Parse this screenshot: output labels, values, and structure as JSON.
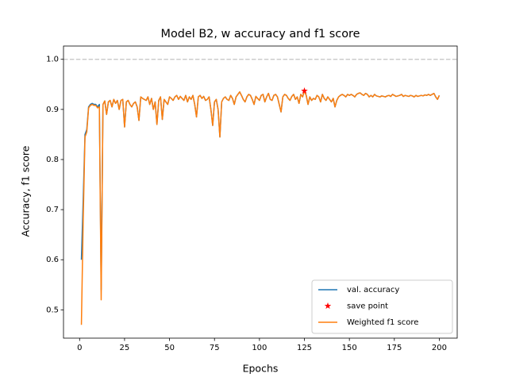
{
  "chart_data": {
    "type": "line",
    "title": "Model B2, w accuracy and f1 score",
    "xlabel": "Epochs",
    "ylabel": "Accuracy, f1 score",
    "x": [
      1,
      2,
      3,
      4,
      5,
      6,
      7,
      8,
      9,
      10,
      11,
      12,
      13,
      14,
      15,
      16,
      17,
      18,
      19,
      20,
      21,
      22,
      23,
      24,
      25,
      26,
      27,
      28,
      29,
      30,
      31,
      32,
      33,
      34,
      35,
      36,
      37,
      38,
      39,
      40,
      41,
      42,
      43,
      44,
      45,
      46,
      47,
      48,
      49,
      50,
      51,
      52,
      53,
      54,
      55,
      56,
      57,
      58,
      59,
      60,
      61,
      62,
      63,
      64,
      65,
      66,
      67,
      68,
      69,
      70,
      71,
      72,
      73,
      74,
      75,
      76,
      77,
      78,
      79,
      80,
      81,
      82,
      83,
      84,
      85,
      86,
      87,
      88,
      89,
      90,
      91,
      92,
      93,
      94,
      95,
      96,
      97,
      98,
      99,
      100,
      101,
      102,
      103,
      104,
      105,
      106,
      107,
      108,
      109,
      110,
      111,
      112,
      113,
      114,
      115,
      116,
      117,
      118,
      119,
      120,
      121,
      122,
      123,
      124,
      125,
      126,
      127,
      128,
      129,
      130,
      131,
      132,
      133,
      134,
      135,
      136,
      137,
      138,
      139,
      140,
      141,
      142,
      143,
      144,
      145,
      146,
      147,
      148,
      149,
      150,
      151,
      152,
      153,
      154,
      155,
      156,
      157,
      158,
      159,
      160,
      161,
      162,
      163,
      164,
      165,
      166,
      167,
      168,
      169,
      170,
      171,
      172,
      173,
      174,
      175,
      176,
      177,
      178,
      179,
      180,
      181,
      182,
      183,
      184,
      185,
      186,
      187,
      188,
      189,
      190,
      191,
      192,
      193,
      194,
      195,
      196,
      197,
      198,
      199,
      200
    ],
    "series": [
      {
        "name": "val. accuracy",
        "type": "line",
        "color": "#1f77b4",
        "values": [
          0.6,
          0.72,
          0.85,
          0.86,
          0.905,
          0.91,
          0.912,
          0.91,
          0.91,
          0.905,
          0.91,
          0.54,
          0.91,
          0.917,
          0.89,
          0.915,
          0.918,
          0.905,
          0.92,
          0.912,
          0.918,
          0.9,
          0.918,
          0.92,
          0.865,
          0.915,
          0.918,
          0.91,
          0.905,
          0.912,
          0.915,
          0.905,
          0.878,
          0.925,
          0.922,
          0.92,
          0.918,
          0.925,
          0.91,
          0.922,
          0.9,
          0.915,
          0.87,
          0.918,
          0.925,
          0.88,
          0.92,
          0.915,
          0.91,
          0.925,
          0.922,
          0.918,
          0.925,
          0.928,
          0.92,
          0.926,
          0.922,
          0.918,
          0.928,
          0.915,
          0.925,
          0.92,
          0.928,
          0.91,
          0.885,
          0.925,
          0.928,
          0.922,
          0.926,
          0.918,
          0.92,
          0.925,
          0.9,
          0.868,
          0.915,
          0.92,
          0.9,
          0.845,
          0.915,
          0.922,
          0.925,
          0.92,
          0.918,
          0.928,
          0.922,
          0.91,
          0.925,
          0.93,
          0.935,
          0.928,
          0.92,
          0.915,
          0.925,
          0.93,
          0.928,
          0.92,
          0.91,
          0.926,
          0.922,
          0.918,
          0.928,
          0.93,
          0.915,
          0.925,
          0.932,
          0.92,
          0.918,
          0.928,
          0.93,
          0.925,
          0.91,
          0.895,
          0.925,
          0.93,
          0.928,
          0.922,
          0.918,
          0.926,
          0.93,
          0.92,
          0.925,
          0.912,
          0.93,
          0.925,
          0.937,
          0.928,
          0.91,
          0.925,
          0.918,
          0.922,
          0.92,
          0.928,
          0.925,
          0.915,
          0.93,
          0.922,
          0.918,
          0.925,
          0.92,
          0.915,
          0.922,
          0.905,
          0.918,
          0.925,
          0.928,
          0.93,
          0.928,
          0.925,
          0.93,
          0.928,
          0.93,
          0.928,
          0.925,
          0.93,
          0.932,
          0.933,
          0.93,
          0.928,
          0.932,
          0.93,
          0.925,
          0.928,
          0.925,
          0.93,
          0.927,
          0.926,
          0.925,
          0.927,
          0.926,
          0.925,
          0.927,
          0.928,
          0.926,
          0.93,
          0.928,
          0.926,
          0.927,
          0.928,
          0.93,
          0.926,
          0.928,
          0.927,
          0.926,
          0.928,
          0.927,
          0.925,
          0.928,
          0.926,
          0.927,
          0.928,
          0.927,
          0.929,
          0.928,
          0.93,
          0.928,
          0.93,
          0.932,
          0.925,
          0.92,
          0.928
        ]
      },
      {
        "name": "save point",
        "type": "scatter",
        "marker": "star",
        "color": "red",
        "x": [
          125
        ],
        "values": [
          0.937
        ]
      },
      {
        "name": "Weighted f1 score",
        "type": "line",
        "color": "#ff7f0e",
        "values": [
          0.47,
          0.68,
          0.845,
          0.855,
          0.903,
          0.908,
          0.91,
          0.908,
          0.908,
          0.903,
          0.905,
          0.52,
          0.91,
          0.917,
          0.89,
          0.915,
          0.918,
          0.905,
          0.92,
          0.912,
          0.918,
          0.9,
          0.918,
          0.92,
          0.865,
          0.915,
          0.918,
          0.91,
          0.905,
          0.912,
          0.915,
          0.905,
          0.878,
          0.925,
          0.922,
          0.92,
          0.918,
          0.925,
          0.91,
          0.922,
          0.9,
          0.915,
          0.87,
          0.918,
          0.925,
          0.88,
          0.92,
          0.915,
          0.91,
          0.925,
          0.922,
          0.918,
          0.925,
          0.928,
          0.92,
          0.926,
          0.922,
          0.918,
          0.928,
          0.915,
          0.925,
          0.92,
          0.928,
          0.91,
          0.885,
          0.925,
          0.928,
          0.922,
          0.926,
          0.918,
          0.92,
          0.925,
          0.9,
          0.868,
          0.915,
          0.92,
          0.9,
          0.845,
          0.915,
          0.922,
          0.925,
          0.92,
          0.918,
          0.928,
          0.922,
          0.91,
          0.925,
          0.93,
          0.935,
          0.928,
          0.92,
          0.915,
          0.925,
          0.93,
          0.928,
          0.92,
          0.91,
          0.926,
          0.922,
          0.918,
          0.928,
          0.93,
          0.915,
          0.925,
          0.932,
          0.92,
          0.918,
          0.928,
          0.93,
          0.925,
          0.91,
          0.895,
          0.925,
          0.93,
          0.928,
          0.922,
          0.918,
          0.926,
          0.93,
          0.92,
          0.925,
          0.912,
          0.93,
          0.925,
          0.937,
          0.928,
          0.91,
          0.925,
          0.918,
          0.922,
          0.92,
          0.928,
          0.925,
          0.915,
          0.93,
          0.922,
          0.918,
          0.925,
          0.92,
          0.915,
          0.922,
          0.905,
          0.918,
          0.925,
          0.928,
          0.93,
          0.928,
          0.925,
          0.93,
          0.928,
          0.93,
          0.928,
          0.925,
          0.93,
          0.932,
          0.933,
          0.93,
          0.928,
          0.932,
          0.93,
          0.925,
          0.928,
          0.925,
          0.93,
          0.927,
          0.926,
          0.925,
          0.927,
          0.926,
          0.925,
          0.927,
          0.928,
          0.926,
          0.93,
          0.928,
          0.926,
          0.927,
          0.928,
          0.93,
          0.926,
          0.928,
          0.927,
          0.926,
          0.928,
          0.927,
          0.925,
          0.928,
          0.926,
          0.927,
          0.928,
          0.927,
          0.929,
          0.928,
          0.93,
          0.928,
          0.93,
          0.932,
          0.925,
          0.92,
          0.928
        ]
      }
    ],
    "reference_line": {
      "value": 1,
      "color": "#cccccc",
      "style": "dashed"
    },
    "xlim": [
      -8.95,
      209.95
    ],
    "xticks": [
      0,
      25,
      50,
      75,
      100,
      125,
      150,
      175,
      200
    ],
    "ylim": [
      0.4435,
      1.0265
    ],
    "yticks": [
      0.5,
      0.6,
      0.7,
      0.8,
      0.9,
      {
        "value": 1,
        "label": "1.0"
      }
    ],
    "legend": "lower right"
  }
}
